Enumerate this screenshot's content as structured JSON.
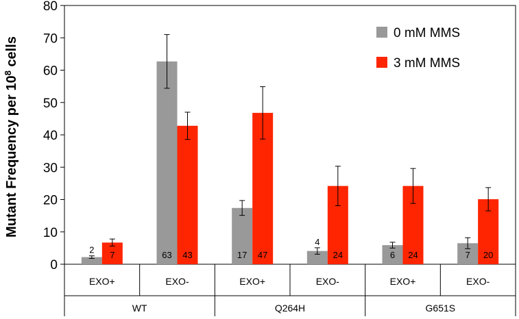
{
  "chart_data": {
    "type": "bar",
    "ylabel": "Mutant Frequency per 10",
    "ylabel_sup": "8",
    "ylabel_suffix": " cells",
    "ylim": [
      0,
      80
    ],
    "yticks": [
      0,
      10,
      20,
      30,
      40,
      50,
      60,
      70,
      80
    ],
    "grid": false,
    "legend_position": "top-right",
    "groups": [
      "WT",
      "Q264H",
      "G651S"
    ],
    "categories": [
      "EXO+",
      "EXO-",
      "EXO+",
      "EXO-",
      "EXO+",
      "EXO-"
    ],
    "category_group": [
      0,
      0,
      1,
      1,
      2,
      2
    ],
    "series": [
      {
        "name": "0 mM MMS",
        "color": "#999999",
        "values": [
          2.2,
          62.7,
          17.4,
          4.1,
          5.9,
          6.5
        ],
        "error": [
          0.4,
          8.3,
          2.3,
          1.0,
          0.9,
          1.7
        ],
        "labels": [
          "2",
          "63",
          "17",
          "4",
          "6",
          "7"
        ],
        "label_position": [
          "above",
          "inside",
          "inside",
          "above",
          "inside",
          "inside"
        ]
      },
      {
        "name": "3 mM MMS",
        "color": "#fe2500",
        "values": [
          6.7,
          42.8,
          46.8,
          24.2,
          24.2,
          20.1
        ],
        "error": [
          1.1,
          4.2,
          8.1,
          6.1,
          5.4,
          3.6
        ],
        "labels": [
          "7",
          "43",
          "47",
          "24",
          "24",
          "20"
        ],
        "label_position": [
          "inside",
          "inside",
          "inside",
          "inside",
          "inside",
          "inside"
        ]
      }
    ]
  }
}
